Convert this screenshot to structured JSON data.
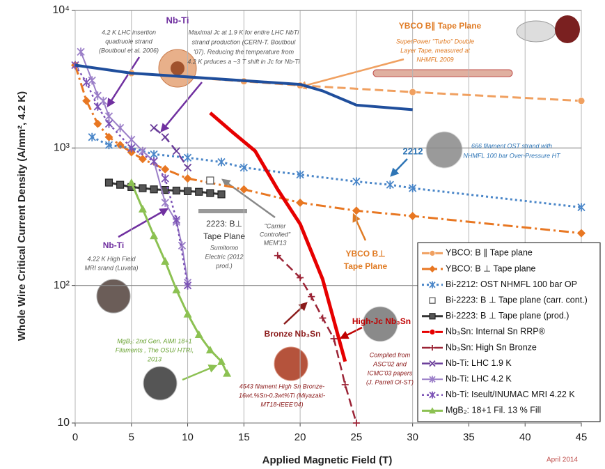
{
  "chart_data": {
    "type": "line",
    "x_label": "Applied Magnetic Field (T)",
    "y_label": "Whole Wire Critical Current Density (A/mm², 4.2 K)",
    "xlim": [
      0,
      45
    ],
    "xticks": [
      0,
      5,
      10,
      15,
      20,
      25,
      30,
      35,
      40,
      45
    ],
    "ylim": [
      10,
      10000
    ],
    "y_scale": "log",
    "yticks": [
      10,
      {
        "value": 100,
        "label": "10²"
      },
      {
        "value": 1000,
        "label": "10³"
      },
      {
        "value": 10000,
        "label": "10⁴"
      }
    ],
    "grid": true,
    "legend": "lower right",
    "series": [
      {
        "name": "YBCO: B ∥ Tape plane",
        "color": "#f0a060",
        "line_style": "dashed",
        "marker": "circle",
        "width": 3,
        "x": [
          0,
          5,
          15,
          20,
          30,
          45
        ],
        "values": [
          4000,
          3500,
          3050,
          2850,
          2550,
          2200
        ]
      },
      {
        "name": "YBCO: B ⊥ Tape plane",
        "color": "#e87722",
        "line_style": "dashdot",
        "marker": "diamond",
        "width": 3,
        "x": [
          0,
          1,
          2,
          3,
          4,
          5,
          6,
          8,
          10,
          15,
          20,
          25,
          30,
          45
        ],
        "values": [
          4000,
          2200,
          1500,
          1200,
          1050,
          930,
          830,
          700,
          600,
          500,
          400,
          350,
          320,
          240
        ]
      },
      {
        "name": "Bi-2212: OST NHMFL 100 bar OP",
        "color": "#4a86c8",
        "line_style": "dotted",
        "marker": "asterisk",
        "width": 3,
        "x": [
          1.5,
          3,
          5,
          7,
          10,
          13,
          15,
          20,
          25,
          28,
          30,
          45
        ],
        "values": [
          1200,
          1050,
          1000,
          900,
          850,
          790,
          720,
          640,
          570,
          540,
          510,
          370
        ]
      },
      {
        "name": "Bi-2223: B ⊥ Tape plane (carr. cont.)",
        "color": "#888888",
        "line_style": "none",
        "marker": "square",
        "width": 1,
        "x": [
          12
        ],
        "values": [
          580
        ]
      },
      {
        "name": "Bi-2223: B ⊥ Tape plane (prod.)",
        "color": "#333333",
        "line_style": "solid",
        "marker": "square",
        "width": 3,
        "x": [
          3,
          4,
          5,
          6,
          7,
          8,
          9,
          10,
          11,
          12,
          13
        ],
        "values": [
          560,
          540,
          520,
          510,
          500,
          495,
          490,
          485,
          480,
          470,
          460
        ]
      },
      {
        "name": "Nb₃Sn: Internal Sn RRP®",
        "color": "#e60000",
        "line_style": "solid",
        "marker": "none",
        "width": 5,
        "x": [
          12,
          14,
          16,
          18,
          20,
          22,
          24
        ],
        "values": [
          1800,
          1300,
          950,
          500,
          280,
          111,
          28
        ]
      },
      {
        "name": "Nb₃Sn: High Sn Bronze",
        "color": "#9b2335",
        "line_style": "dashed",
        "marker": "plus",
        "width": 2.5,
        "x": [
          18,
          20,
          21,
          22,
          23,
          24,
          25
        ],
        "values": [
          165,
          114,
          83,
          58,
          41,
          19,
          10
        ]
      },
      {
        "name": "Nb-Ti: LHC 1.9 K",
        "color": "#6a3d9a",
        "line_style": "dashed",
        "marker": "x",
        "width": 2.5,
        "x": [
          7,
          8,
          9,
          10
        ],
        "values": [
          1400,
          1200,
          950,
          720
        ]
      },
      {
        "name": "Nb-Ti: LHC 4.2 K",
        "color": "#9b7fc8",
        "line_style": "solid",
        "marker": "asterisk",
        "width": 2,
        "x": [
          0.5,
          1.5,
          2,
          2.5,
          3,
          4,
          5,
          6,
          7,
          8,
          9,
          9.5,
          10
        ],
        "values": [
          5000,
          3100,
          2400,
          2200,
          1700,
          1400,
          1150,
          950,
          800,
          400,
          290,
          195,
          105
        ]
      },
      {
        "name": "Nb-Ti: Iseult/INUMAC MRI 4.22 K",
        "color": "#7b52b5",
        "line_style": "dotted",
        "marker": "asterisk",
        "width": 2.5,
        "x": [
          0,
          1,
          2,
          3,
          5,
          7,
          8,
          9,
          10
        ],
        "values": [
          4000,
          3000,
          2000,
          1500,
          1000,
          800,
          600,
          300,
          100
        ]
      },
      {
        "name": "MgB₂: 18+1 Fil. 13 % Fill",
        "color": "#8cc152",
        "line_style": "solid",
        "marker": "triangle",
        "width": 3,
        "x": [
          5,
          6,
          7,
          8,
          9,
          10,
          11,
          12,
          13,
          13.5
        ],
        "values": [
          560,
          360,
          230,
          150,
          93,
          62,
          44,
          34,
          28,
          23
        ]
      },
      {
        "color": "#1f4e9c",
        "line_style": "solid",
        "marker": "none",
        "width": 4,
        "x": [
          0,
          5,
          20,
          22,
          25,
          30
        ],
        "values": [
          4000,
          3500,
          2900,
          2600,
          2050,
          1900
        ]
      }
    ],
    "annotations": [
      {
        "lines": [
          "Nb-Ti"
        ],
        "color": "#7030a0"
      },
      {
        "lines": [
          "4.2 K LHC insertion",
          "quadruole strand",
          "(Boutboul et al. 2006)"
        ],
        "color": "#555555"
      },
      {
        "lines": [
          "Maximal Jc at 1.9 K for entire LHC NbTi",
          "strand production (CERN-T. Boutboul",
          "'07). Reducing the temperature from",
          "4.2 K prduces a ~3 T shift in Jc for Nb-Ti"
        ],
        "color": "#555555"
      },
      {
        "lines": [
          "YBCO B∥ Tape Plane"
        ],
        "color": "#e07b24"
      },
      {
        "lines": [
          "SuperPower \"Turbo\" Double",
          "Layer Tape, measured at",
          "NHMFL 2009"
        ],
        "color": "#e07b24"
      },
      {
        "lines": [
          "2212"
        ],
        "color": "#2e75b6"
      },
      {
        "lines": [
          "666 filament OST strand with",
          "NHMFL 100 bar Over-Pressure HT"
        ],
        "color": "#2e75b6"
      },
      {
        "lines": [
          "2223: B⊥",
          "Tape Plane"
        ],
        "color": "#333333"
      },
      {
        "lines": [
          "Sumitomo",
          "Electric (2012",
          "prod.)"
        ],
        "color": "#555555"
      },
      {
        "lines": [
          "\"Carrier",
          "Controlled\"",
          "MEM'13"
        ],
        "color": "#555555"
      },
      {
        "lines": [
          "YBCO B⊥",
          "Tape Plane"
        ],
        "color": "#e07b24"
      },
      {
        "lines": [
          "Nb-Ti"
        ],
        "color": "#7030a0"
      },
      {
        "lines": [
          "4.22 K High Field",
          "MRI srand (Luvata)"
        ],
        "color": "#555555"
      },
      {
        "lines": [
          "High-Jc Nb₃Sn"
        ],
        "color": "#c00000"
      },
      {
        "lines": [
          "Bronze Nb₃Sn"
        ],
        "color": "#8b1a1a"
      },
      {
        "lines": [
          "Compiled from",
          "ASC'02 and",
          "ICMC'03 papers",
          "(J. Parrell OI-ST)"
        ],
        "color": "#8b1a1a"
      },
      {
        "lines": [
          "MgB₂: 2nd Gen. AIMI 18+1",
          "Filaments , The OSU/ HTRI,",
          "2013"
        ],
        "color": "#6aa333"
      },
      {
        "lines": [
          "4543 filament High Sn Bronze-",
          "16wt.%Sn-0.3wt%Ti (Miyazaki-",
          "MT18-IEEE'04)"
        ],
        "color": "#8b1a1a"
      },
      {
        "lines": [
          "April 2014"
        ],
        "color": "#c0504d"
      }
    ]
  }
}
